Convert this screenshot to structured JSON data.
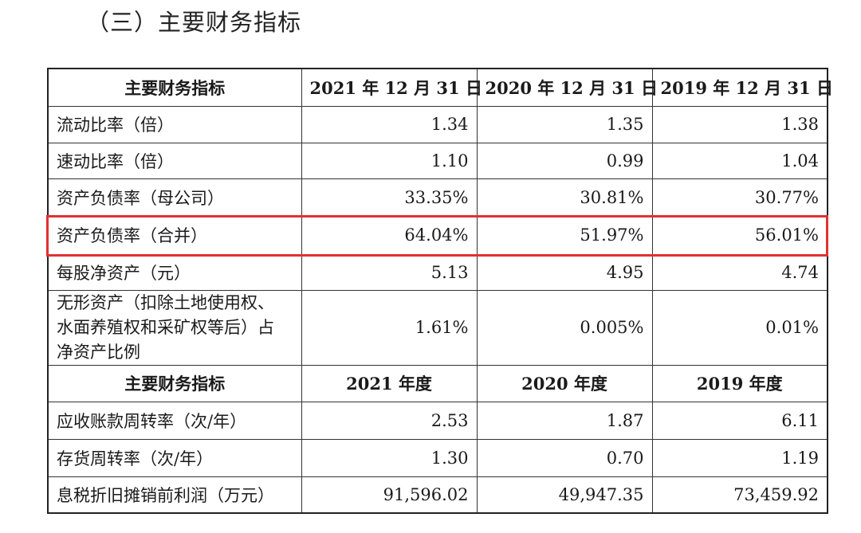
{
  "section_title": "（三）主要财务指标",
  "header_row_1": [
    "主要财务指标",
    "2021 年 12 月 31 日",
    "2020 年 12 月 31 日",
    "2019 年 12 月 31 日"
  ],
  "balance_rows": [
    {
      "label": "流动比率（倍）",
      "values": [
        "1.34",
        "1.35",
        "1.38"
      ]
    },
    {
      "label": "速动比率（倍）",
      "values": [
        "1.10",
        "0.99",
        "1.04"
      ]
    },
    {
      "label": "资产负债率（母公司）",
      "values": [
        "33.35%",
        "30.81%",
        "30.77%"
      ]
    },
    {
      "label": "资产负债率（合并）",
      "values": [
        "64.04%",
        "51.97%",
        "56.01%"
      ]
    },
    {
      "label": "每股净资产（元）",
      "values": [
        "5.13",
        "4.95",
        "4.74"
      ]
    },
    {
      "label": "无形资产（扣除土地使用权、水面养殖权和采矿权等后）占净资产比例",
      "values": [
        "1.61%",
        "0.005%",
        "0.01%"
      ]
    }
  ],
  "header_row_2": [
    "主要财务指标",
    "2021 年度",
    "2020 年度",
    "2019 年度"
  ],
  "period_rows": [
    {
      "label": "应收账款周转率（次/年）",
      "values": [
        "2.53",
        "1.87",
        "6.11"
      ]
    },
    {
      "label": "存货周转率（次/年）",
      "values": [
        "1.30",
        "0.70",
        "1.19"
      ]
    },
    {
      "label": "息税折旧摊销前利润（万元）",
      "values": [
        "91,596.02",
        "49,947.35",
        "73,459.92"
      ]
    }
  ],
  "colors": {
    "highlight": "#e03131"
  }
}
